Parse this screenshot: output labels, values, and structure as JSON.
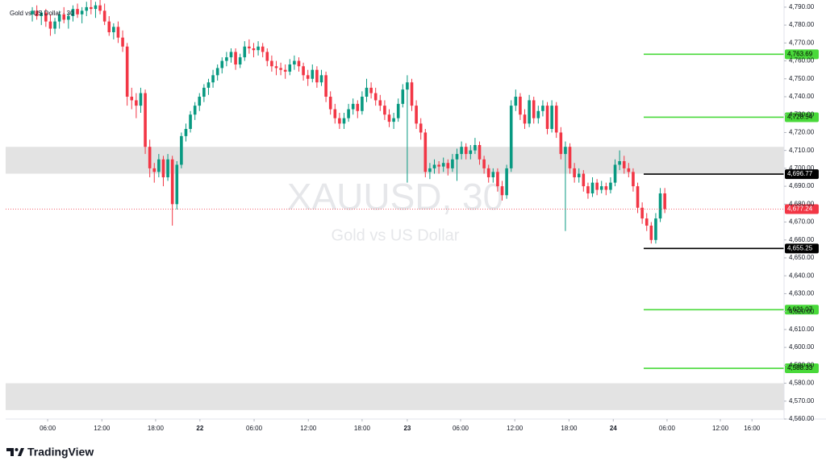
{
  "chart_data": {
    "type": "candlestick",
    "title": "Gold vs US Dollar · 30",
    "watermark": "XAUUSD, 30",
    "watermark_subtitle": "Gold vs US Dollar",
    "up_color": "#089981",
    "down_color": "#f23645",
    "xlim": [
      -5.9,
      166.4
    ],
    "xticks": [
      {
        "value": 3.4,
        "label": "06:00"
      },
      {
        "value": 15.4,
        "label": "12:00"
      },
      {
        "value": 27.3,
        "label": "18:00"
      },
      {
        "value": 37.1,
        "label": "22"
      },
      {
        "value": 49.1,
        "label": "06:00"
      },
      {
        "value": 61.1,
        "label": "12:00"
      },
      {
        "value": 73,
        "label": "18:00"
      },
      {
        "value": 83,
        "label": "23"
      },
      {
        "value": 94.8,
        "label": "06:00"
      },
      {
        "value": 106.8,
        "label": "12:00"
      },
      {
        "value": 118.8,
        "label": "18:00"
      },
      {
        "value": 128.6,
        "label": "24"
      },
      {
        "value": 140.5,
        "label": "06:00"
      },
      {
        "value": 152.3,
        "label": "12:00"
      },
      {
        "value": 159.3,
        "label": "16:00"
      }
    ],
    "ylim": [
      4560,
      4794
    ],
    "yticks": [
      {
        "value": 4560,
        "label": "4,560.00"
      },
      {
        "value": 4570,
        "label": "4,570.00"
      },
      {
        "value": 4580,
        "label": "4,580.00"
      },
      {
        "value": 4590,
        "label": "4,590.00"
      },
      {
        "value": 4600,
        "label": "4,600.00"
      },
      {
        "value": 4610,
        "label": "4,610.00"
      },
      {
        "value": 4620,
        "label": "4,620.00"
      },
      {
        "value": 4630,
        "label": "4,630.00"
      },
      {
        "value": 4640,
        "label": "4,640.00"
      },
      {
        "value": 4650,
        "label": "4,650.00"
      },
      {
        "value": 4660,
        "label": "4,660.00"
      },
      {
        "value": 4670,
        "label": "4,670.00"
      },
      {
        "value": 4680,
        "label": "4,680.00"
      },
      {
        "value": 4690,
        "label": "4,690.00"
      },
      {
        "value": 4700,
        "label": "4,700.00"
      },
      {
        "value": 4710,
        "label": "4,710.00"
      },
      {
        "value": 4720,
        "label": "4,720.00"
      },
      {
        "value": 4730,
        "label": "4,730.00"
      },
      {
        "value": 4740,
        "label": "4,740.00"
      },
      {
        "value": 4750,
        "label": "4,750.00"
      },
      {
        "value": 4760,
        "label": "4,760.00"
      },
      {
        "value": 4770,
        "label": "4,770.00"
      },
      {
        "value": 4780,
        "label": "4,780.00"
      },
      {
        "value": 4790,
        "label": "4,790.00"
      }
    ],
    "zones": [
      [
        4697,
        4712
      ],
      [
        4565,
        4580
      ]
    ],
    "zone_color": "#e3e3e3",
    "levels": [
      {
        "value": 4763.69,
        "label": "4,763.69",
        "color": "#49d93a"
      },
      {
        "value": 4728.54,
        "label": "4,728.54",
        "color": "#49d93a"
      },
      {
        "value": 4696.77,
        "label": "4,696.77",
        "color": "#000000"
      },
      {
        "value": 4655.25,
        "label": "4,655.25",
        "color": "#000000"
      },
      {
        "value": 4621.07,
        "label": "4,621.07",
        "color": "#49d93a"
      },
      {
        "value": 4588.33,
        "label": "4,588.33",
        "color": "#49d93a"
      }
    ],
    "last_price": {
      "value": 4677.24,
      "label": "4,677.24"
    },
    "candles": [
      [
        4786,
        4790,
        4782,
        4788
      ],
      [
        4788,
        4791,
        4783,
        4785
      ],
      [
        4785,
        4788,
        4780,
        4787
      ],
      [
        4787,
        4789,
        4779,
        4782
      ],
      [
        4782,
        4786,
        4774,
        4778
      ],
      [
        4778,
        4784,
        4775,
        4782
      ],
      [
        4782,
        4788,
        4778,
        4786
      ],
      [
        4786,
        4790,
        4781,
        4783
      ],
      [
        4783,
        4787,
        4778,
        4785
      ],
      [
        4785,
        4791,
        4782,
        4789
      ],
      [
        4789,
        4792,
        4784,
        4786
      ],
      [
        4786,
        4790,
        4781,
        4788
      ],
      [
        4788,
        4793,
        4785,
        4790
      ],
      [
        4790,
        4794,
        4786,
        4789
      ],
      [
        4789,
        4793,
        4784,
        4791
      ],
      [
        4791,
        4794,
        4786,
        4788
      ],
      [
        4788,
        4792,
        4780,
        4782
      ],
      [
        4782,
        4785,
        4774,
        4776
      ],
      [
        4776,
        4781,
        4772,
        4779
      ],
      [
        4779,
        4782,
        4770,
        4773
      ],
      [
        4773,
        4777,
        4765,
        4768
      ],
      [
        4768,
        4770,
        4735,
        4740
      ],
      [
        4740,
        4745,
        4733,
        4738
      ],
      [
        4738,
        4742,
        4728,
        4735
      ],
      [
        4735,
        4745,
        4731,
        4742
      ],
      [
        4742,
        4744,
        4708,
        4712
      ],
      [
        4712,
        4716,
        4695,
        4700
      ],
      [
        4700,
        4703,
        4692,
        4698
      ],
      [
        4698,
        4708,
        4695,
        4705
      ],
      [
        4705,
        4707,
        4690,
        4695
      ],
      [
        4695,
        4708,
        4693,
        4705
      ],
      [
        4705,
        4707,
        4668,
        4680
      ],
      [
        4680,
        4704,
        4677,
        4702
      ],
      [
        4702,
        4720,
        4700,
        4718
      ],
      [
        4718,
        4725,
        4715,
        4722
      ],
      [
        4722,
        4732,
        4720,
        4730
      ],
      [
        4730,
        4737,
        4727,
        4735
      ],
      [
        4735,
        4742,
        4732,
        4740
      ],
      [
        4740,
        4747,
        4737,
        4745
      ],
      [
        4745,
        4750,
        4741,
        4748
      ],
      [
        4748,
        4755,
        4745,
        4752
      ],
      [
        4752,
        4758,
        4749,
        4756
      ],
      [
        4756,
        4762,
        4753,
        4760
      ],
      [
        4760,
        4765,
        4757,
        4762
      ],
      [
        4762,
        4767,
        4759,
        4765
      ],
      [
        4765,
        4767,
        4755,
        4758
      ],
      [
        4758,
        4764,
        4756,
        4762
      ],
      [
        4762,
        4771,
        4760,
        4768
      ],
      [
        4768,
        4772,
        4764,
        4767
      ],
      [
        4767,
        4770,
        4762,
        4766
      ],
      [
        4766,
        4771,
        4763,
        4768
      ],
      [
        4768,
        4770,
        4762,
        4765
      ],
      [
        4765,
        4767,
        4757,
        4760
      ],
      [
        4760,
        4763,
        4754,
        4757
      ],
      [
        4757,
        4760,
        4752,
        4756
      ],
      [
        4756,
        4759,
        4752,
        4755
      ],
      [
        4755,
        4758,
        4750,
        4754
      ],
      [
        4754,
        4761,
        4752,
        4758
      ],
      [
        4758,
        4763,
        4755,
        4760
      ],
      [
        4760,
        4762,
        4754,
        4757
      ],
      [
        4757,
        4759,
        4749,
        4752
      ],
      [
        4752,
        4755,
        4746,
        4750
      ],
      [
        4750,
        4758,
        4748,
        4755
      ],
      [
        4755,
        4757,
        4745,
        4748
      ],
      [
        4748,
        4755,
        4746,
        4752
      ],
      [
        4752,
        4754,
        4737,
        4740
      ],
      [
        4740,
        4743,
        4730,
        4733
      ],
      [
        4733,
        4736,
        4725,
        4728
      ],
      [
        4728,
        4731,
        4722,
        4725
      ],
      [
        4725,
        4731,
        4722,
        4728
      ],
      [
        4728,
        4736,
        4726,
        4733
      ],
      [
        4733,
        4739,
        4730,
        4736
      ],
      [
        4736,
        4738,
        4728,
        4732
      ],
      [
        4732,
        4743,
        4730,
        4740
      ],
      [
        4740,
        4750,
        4737,
        4745
      ],
      [
        4745,
        4748,
        4739,
        4742
      ],
      [
        4742,
        4745,
        4735,
        4738
      ],
      [
        4738,
        4741,
        4732,
        4735
      ],
      [
        4735,
        4738,
        4727,
        4730
      ],
      [
        4730,
        4733,
        4723,
        4726
      ],
      [
        4726,
        4731,
        4722,
        4728
      ],
      [
        4728,
        4739,
        4726,
        4736
      ],
      [
        4736,
        4747,
        4734,
        4744
      ],
      [
        4744,
        4752,
        4692,
        4748
      ],
      [
        4748,
        4750,
        4732,
        4735
      ],
      [
        4735,
        4738,
        4722,
        4725
      ],
      [
        4725,
        4728,
        4716,
        4720
      ],
      [
        4720,
        4722,
        4695,
        4698
      ],
      [
        4698,
        4703,
        4694,
        4700
      ],
      [
        4700,
        4705,
        4697,
        4702
      ],
      [
        4702,
        4704,
        4697,
        4701
      ],
      [
        4701,
        4706,
        4698,
        4703
      ],
      [
        4703,
        4705,
        4696,
        4700
      ],
      [
        4700,
        4708,
        4698,
        4705
      ],
      [
        4705,
        4711,
        4693,
        4708
      ],
      [
        4708,
        4715,
        4705,
        4712
      ],
      [
        4712,
        4714,
        4705,
        4708
      ],
      [
        4708,
        4713,
        4705,
        4710
      ],
      [
        4710,
        4717,
        4708,
        4713
      ],
      [
        4713,
        4715,
        4702,
        4705
      ],
      [
        4705,
        4707,
        4697,
        4700
      ],
      [
        4700,
        4702,
        4692,
        4695
      ],
      [
        4695,
        4700,
        4692,
        4698
      ],
      [
        4698,
        4700,
        4687,
        4690
      ],
      [
        4690,
        4693,
        4682,
        4685
      ],
      [
        4685,
        4702,
        4683,
        4700
      ],
      [
        4700,
        4738,
        4698,
        4735
      ],
      [
        4735,
        4744,
        4732,
        4740
      ],
      [
        4740,
        4742,
        4727,
        4730
      ],
      [
        4730,
        4733,
        4722,
        4725
      ],
      [
        4725,
        4741,
        4723,
        4738
      ],
      [
        4738,
        4740,
        4725,
        4728
      ],
      [
        4728,
        4735,
        4725,
        4732
      ],
      [
        4732,
        4738,
        4729,
        4735
      ],
      [
        4735,
        4737,
        4719,
        4722
      ],
      [
        4722,
        4738,
        4720,
        4735
      ],
      [
        4735,
        4737,
        4717,
        4720
      ],
      [
        4720,
        4723,
        4705,
        4708
      ],
      [
        4708,
        4715,
        4665,
        4712
      ],
      [
        4712,
        4714,
        4697,
        4700
      ],
      [
        4700,
        4703,
        4692,
        4695
      ],
      [
        4695,
        4700,
        4692,
        4697
      ],
      [
        4697,
        4699,
        4687,
        4690
      ],
      [
        4690,
        4692,
        4683,
        4686
      ],
      [
        4686,
        4695,
        4684,
        4692
      ],
      [
        4692,
        4694,
        4685,
        4688
      ],
      [
        4688,
        4693,
        4686,
        4690
      ],
      [
        4690,
        4692,
        4685,
        4688
      ],
      [
        4688,
        4695,
        4686,
        4692
      ],
      [
        4692,
        4705,
        4690,
        4702
      ],
      [
        4702,
        4710,
        4699,
        4704
      ],
      [
        4704,
        4707,
        4697,
        4700
      ],
      [
        4700,
        4703,
        4695,
        4698
      ],
      [
        4698,
        4700,
        4687,
        4690
      ],
      [
        4690,
        4692,
        4675,
        4678
      ],
      [
        4678,
        4681,
        4669,
        4672
      ],
      [
        4672,
        4675,
        4665,
        4668
      ],
      [
        4668,
        4670,
        4658,
        4660
      ],
      [
        4660,
        4675,
        4658,
        4672
      ],
      [
        4672,
        4689,
        4670,
        4686
      ],
      [
        4686,
        4689,
        4675,
        4677.24
      ]
    ]
  },
  "footer": {
    "brand": "TradingView"
  }
}
